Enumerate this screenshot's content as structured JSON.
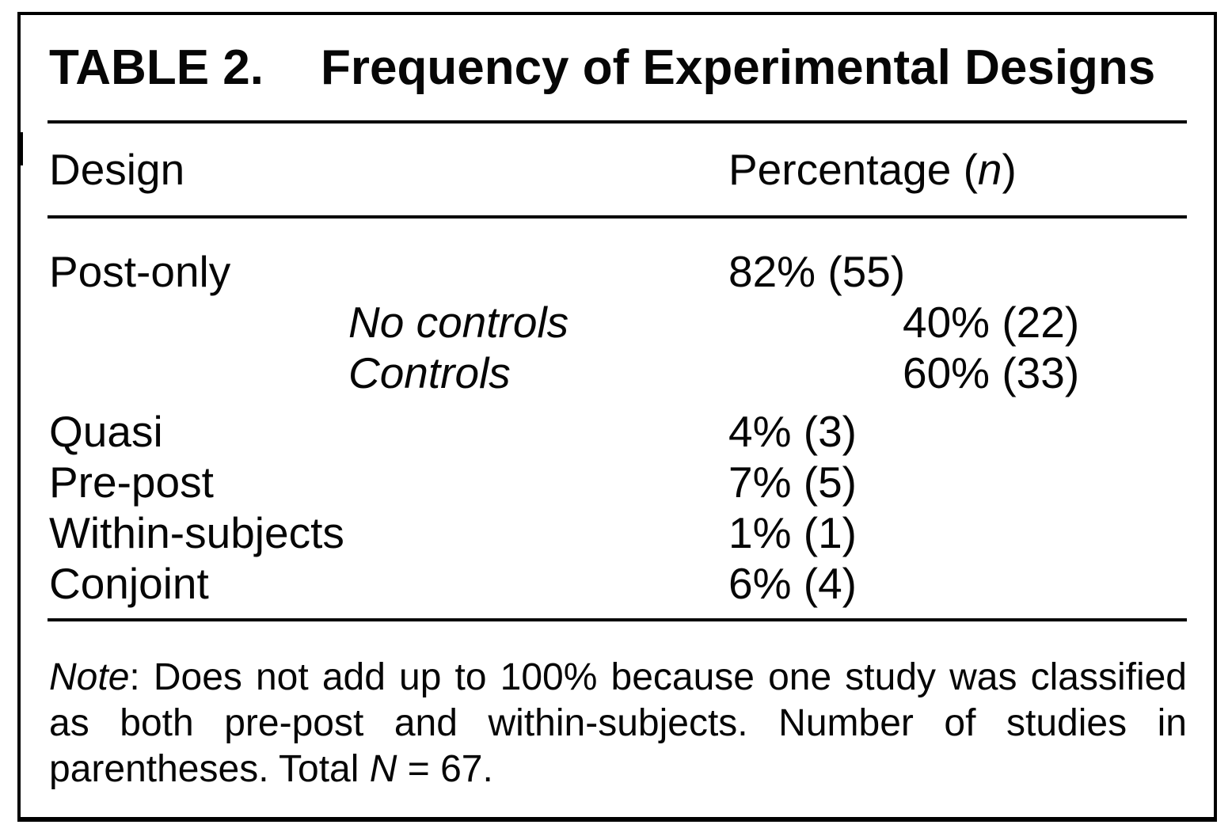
{
  "colors": {
    "text": "#060606",
    "background": "#ffffff",
    "border": "#000000"
  },
  "title": {
    "label": "TABLE 2.",
    "text": "Frequency of Experimental Designs"
  },
  "header": {
    "design": "Design",
    "percentage": {
      "pre": "Percentage (",
      "var": "n",
      "post": ")"
    }
  },
  "rows": [
    {
      "label": "Post-only",
      "value": "82% (55)",
      "indent": false
    },
    {
      "label": "No controls",
      "value": "40% (22)",
      "indent": true
    },
    {
      "label": "Controls",
      "value": "60% (33)",
      "indent": true
    },
    {
      "label": "Quasi",
      "value": "4% (3)",
      "indent": false
    },
    {
      "label": "Pre-post",
      "value": "7% (5)",
      "indent": false
    },
    {
      "label": "Within-subjects",
      "value": "1% (1)",
      "indent": false
    },
    {
      "label": "Conjoint",
      "value": "6% (4)",
      "indent": false
    }
  ],
  "note": {
    "label": "Note",
    "body": ": Does not add up to 100% because one study was classified as both pre-post and within-subjects. Number of studies in parentheses. Total ",
    "var": "N",
    "tail": " = 67."
  }
}
